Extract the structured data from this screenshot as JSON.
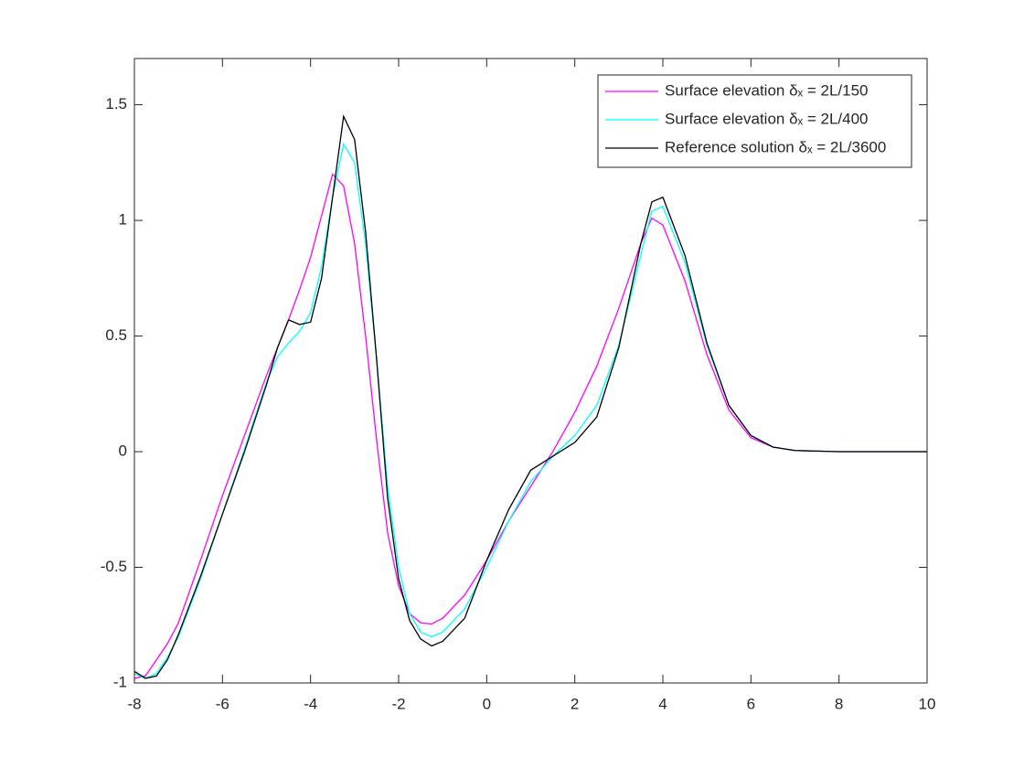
{
  "chart_data": {
    "type": "line",
    "x": [
      -8,
      -7.75,
      -7.5,
      -7.25,
      -7,
      -6.5,
      -6,
      -5.5,
      -5,
      -4.75,
      -4.5,
      -4.25,
      -4,
      -3.75,
      -3.5,
      -3.25,
      -3,
      -2.75,
      -2.5,
      -2.25,
      -2,
      -1.75,
      -1.5,
      -1.25,
      -1,
      -0.5,
      0,
      0.5,
      1,
      1.5,
      2,
      2.5,
      3,
      3.5,
      3.75,
      4,
      4.5,
      5,
      5.5,
      6,
      6.5,
      7,
      8,
      9,
      10
    ],
    "series": [
      {
        "name": "Surface elevation δₓ = 2L/150",
        "color": "#ff00ff",
        "values": [
          -0.98,
          -0.97,
          -0.9,
          -0.83,
          -0.74,
          -0.47,
          -0.19,
          0.07,
          0.33,
          0.45,
          0.57,
          0.7,
          0.84,
          1.02,
          1.2,
          1.15,
          0.9,
          0.5,
          0.05,
          -0.35,
          -0.58,
          -0.7,
          -0.74,
          -0.745,
          -0.72,
          -0.62,
          -0.47,
          -0.3,
          -0.15,
          0,
          0.17,
          0.37,
          0.62,
          0.9,
          1.01,
          0.98,
          0.74,
          0.42,
          0.18,
          0.06,
          0.02,
          0.005,
          0,
          0,
          0
        ]
      },
      {
        "name": "Surface elevation δₓ = 2L/400",
        "color": "#00ffff",
        "values": [
          -0.96,
          -0.98,
          -0.96,
          -0.89,
          -0.8,
          -0.55,
          -0.27,
          0.01,
          0.3,
          0.41,
          0.47,
          0.52,
          0.6,
          0.8,
          1.1,
          1.33,
          1.25,
          0.9,
          0.4,
          -0.15,
          -0.5,
          -0.7,
          -0.78,
          -0.8,
          -0.78,
          -0.68,
          -0.5,
          -0.3,
          -0.13,
          -0.02,
          0.07,
          0.2,
          0.46,
          0.85,
          1.04,
          1.06,
          0.82,
          0.46,
          0.2,
          0.07,
          0.02,
          0.005,
          0,
          0,
          0
        ]
      },
      {
        "name": "Reference solution δₓ = 2L/3600",
        "color": "#000000",
        "values": [
          -0.95,
          -0.98,
          -0.97,
          -0.9,
          -0.79,
          -0.54,
          -0.27,
          0,
          0.29,
          0.45,
          0.57,
          0.55,
          0.56,
          0.75,
          1.1,
          1.45,
          1.35,
          0.95,
          0.4,
          -0.2,
          -0.55,
          -0.73,
          -0.81,
          -0.84,
          -0.82,
          -0.72,
          -0.47,
          -0.25,
          -0.08,
          -0.02,
          0.04,
          0.15,
          0.45,
          0.9,
          1.08,
          1.1,
          0.85,
          0.47,
          0.2,
          0.07,
          0.02,
          0.005,
          0,
          0,
          0
        ]
      }
    ],
    "xlim": [
      -8,
      10
    ],
    "xticks": [
      -8,
      -6,
      -4,
      -2,
      0,
      2,
      4,
      6,
      8,
      10
    ],
    "ylim": [
      -1,
      1.7
    ],
    "yticks": [
      -1,
      -0.5,
      0,
      0.5,
      1,
      1.5
    ],
    "legend": "top-right"
  }
}
